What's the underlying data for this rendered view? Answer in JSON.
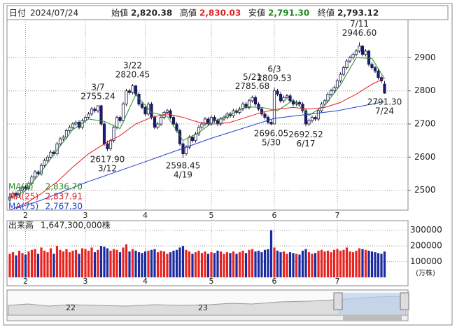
{
  "chart_data": {
    "type": "candlestick",
    "header": {
      "date_label": "日付",
      "date": "2024/07/24",
      "open_label": "始値",
      "open": "2,820.38",
      "high_label": "高値",
      "high": "2,830.03",
      "low_label": "安値",
      "low": "2,791.30",
      "close_label": "終値",
      "close": "2,793.12"
    },
    "ylim": [
      2440,
      3015
    ],
    "yticks": [
      2500,
      2600,
      2700,
      2800,
      2900
    ],
    "xticks": [
      {
        "value": 5,
        "label": "2"
      },
      {
        "value": 24,
        "label": "3"
      },
      {
        "value": 43,
        "label": "4"
      },
      {
        "value": 64,
        "label": "5"
      },
      {
        "value": 84,
        "label": "6"
      },
      {
        "value": 104,
        "label": "7"
      }
    ],
    "grid": true,
    "up_color": "#ffffff",
    "down_color": "#1a1a80",
    "volume_up_color": "#e8231f",
    "volume_down_color": "#1c2aa0",
    "ohlc": [
      [
        2470,
        2486,
        2464,
        2480
      ],
      [
        2480,
        2496,
        2474,
        2490
      ],
      [
        2490,
        2496,
        2479,
        2485
      ],
      [
        2485,
        2506,
        2479,
        2500
      ],
      [
        2500,
        2516,
        2494,
        2510
      ],
      [
        2510,
        2516,
        2499,
        2505
      ],
      [
        2505,
        2526,
        2499,
        2520
      ],
      [
        2520,
        2546,
        2514,
        2540
      ],
      [
        2540,
        2561,
        2534,
        2555
      ],
      [
        2555,
        2561,
        2544,
        2550
      ],
      [
        2550,
        2581,
        2544,
        2575
      ],
      [
        2575,
        2596,
        2569,
        2590
      ],
      [
        2590,
        2606,
        2584,
        2600
      ],
      [
        2600,
        2621,
        2594,
        2615
      ],
      [
        2615,
        2621,
        2604,
        2610
      ],
      [
        2610,
        2646,
        2604,
        2640
      ],
      [
        2640,
        2661,
        2634,
        2655
      ],
      [
        2655,
        2666,
        2649,
        2660
      ],
      [
        2660,
        2686,
        2654,
        2680
      ],
      [
        2680,
        2696,
        2674,
        2690
      ],
      [
        2690,
        2706,
        2684,
        2700
      ],
      [
        2700,
        2711,
        2694,
        2705
      ],
      [
        2705,
        2711,
        2684,
        2690
      ],
      [
        2690,
        2716,
        2684,
        2710
      ],
      [
        2710,
        2726,
        2704,
        2720
      ],
      [
        2720,
        2736,
        2714,
        2730
      ],
      [
        2730,
        2751,
        2724,
        2745
      ],
      [
        2745,
        2751,
        2734,
        2740
      ],
      [
        2740,
        2755.24,
        2734,
        2755
      ],
      [
        2755,
        2758,
        2694,
        2700
      ],
      [
        2700,
        2706,
        2634,
        2640
      ],
      [
        2640,
        2650,
        2617.9,
        2625
      ],
      [
        2625,
        2656,
        2619,
        2650
      ],
      [
        2650,
        2696,
        2644,
        2690
      ],
      [
        2690,
        2726,
        2684,
        2720
      ],
      [
        2720,
        2726,
        2704,
        2710
      ],
      [
        2710,
        2766,
        2704,
        2760
      ],
      [
        2760,
        2806,
        2754,
        2800
      ],
      [
        2800,
        2806,
        2789,
        2795
      ],
      [
        2795,
        2820.45,
        2789,
        2815
      ],
      [
        2815,
        2818,
        2784,
        2790
      ],
      [
        2790,
        2796,
        2754,
        2760
      ],
      [
        2760,
        2766,
        2744,
        2750
      ],
      [
        2750,
        2756,
        2724,
        2730
      ],
      [
        2730,
        2766,
        2724,
        2760
      ],
      [
        2760,
        2766,
        2714,
        2720
      ],
      [
        2720,
        2726,
        2684,
        2690
      ],
      [
        2690,
        2706,
        2684,
        2700
      ],
      [
        2700,
        2726,
        2694,
        2720
      ],
      [
        2720,
        2741,
        2714,
        2735
      ],
      [
        2735,
        2746,
        2729,
        2740
      ],
      [
        2740,
        2746,
        2714,
        2720
      ],
      [
        2720,
        2726,
        2694,
        2700
      ],
      [
        2700,
        2706,
        2674,
        2680
      ],
      [
        2680,
        2686,
        2634,
        2640
      ],
      [
        2640,
        2646,
        2598.45,
        2610
      ],
      [
        2610,
        2636,
        2604,
        2630
      ],
      [
        2630,
        2666,
        2624,
        2660
      ],
      [
        2660,
        2666,
        2644,
        2650
      ],
      [
        2650,
        2676,
        2644,
        2670
      ],
      [
        2670,
        2696,
        2664,
        2690
      ],
      [
        2690,
        2706,
        2684,
        2700
      ],
      [
        2700,
        2721,
        2694,
        2715
      ],
      [
        2715,
        2721,
        2694,
        2700
      ],
      [
        2700,
        2726,
        2694,
        2720
      ],
      [
        2720,
        2726,
        2704,
        2710
      ],
      [
        2710,
        2716,
        2694,
        2700
      ],
      [
        2700,
        2721,
        2694,
        2715
      ],
      [
        2715,
        2726,
        2709,
        2720
      ],
      [
        2720,
        2736,
        2714,
        2730
      ],
      [
        2730,
        2736,
        2719,
        2725
      ],
      [
        2725,
        2746,
        2719,
        2740
      ],
      [
        2740,
        2746,
        2729,
        2735
      ],
      [
        2735,
        2751,
        2729,
        2745
      ],
      [
        2745,
        2766,
        2739,
        2760
      ],
      [
        2760,
        2766,
        2744,
        2750
      ],
      [
        2750,
        2776,
        2744,
        2770
      ],
      [
        2770,
        2785.68,
        2764,
        2780
      ],
      [
        2780,
        2786,
        2754,
        2760
      ],
      [
        2760,
        2766,
        2739,
        2745
      ],
      [
        2745,
        2751,
        2724,
        2730
      ],
      [
        2730,
        2736,
        2714,
        2720
      ],
      [
        2720,
        2726,
        2699,
        2705
      ],
      [
        2705,
        2712,
        2696.05,
        2700
      ],
      [
        2700,
        2809.53,
        2700,
        2800
      ],
      [
        2800,
        2806,
        2784,
        2790
      ],
      [
        2790,
        2796,
        2764,
        2770
      ],
      [
        2770,
        2786,
        2764,
        2780
      ],
      [
        2780,
        2791,
        2774,
        2785
      ],
      [
        2785,
        2791,
        2764,
        2770
      ],
      [
        2770,
        2776,
        2754,
        2760
      ],
      [
        2760,
        2771,
        2754,
        2765
      ],
      [
        2765,
        2771,
        2754,
        2760
      ],
      [
        2760,
        2766,
        2734,
        2740
      ],
      [
        2740,
        2746,
        2692.52,
        2700
      ],
      [
        2700,
        2716,
        2694,
        2710
      ],
      [
        2710,
        2726,
        2704,
        2720
      ],
      [
        2720,
        2726,
        2709,
        2715
      ],
      [
        2715,
        2746,
        2709,
        2740
      ],
      [
        2740,
        2766,
        2734,
        2760
      ],
      [
        2760,
        2776,
        2754,
        2770
      ],
      [
        2770,
        2796,
        2764,
        2790
      ],
      [
        2790,
        2806,
        2784,
        2800
      ],
      [
        2800,
        2816,
        2794,
        2810
      ],
      [
        2810,
        2836,
        2804,
        2830
      ],
      [
        2830,
        2856,
        2824,
        2850
      ],
      [
        2850,
        2876,
        2844,
        2870
      ],
      [
        2870,
        2896,
        2864,
        2890
      ],
      [
        2890,
        2906,
        2884,
        2900
      ],
      [
        2900,
        2916,
        2894,
        2910
      ],
      [
        2910,
        2926,
        2904,
        2920
      ],
      [
        2920,
        2946.6,
        2914,
        2935
      ],
      [
        2935,
        2938,
        2904,
        2910
      ],
      [
        2910,
        2926,
        2904,
        2920
      ],
      [
        2920,
        2924,
        2874,
        2880
      ],
      [
        2880,
        2886,
        2864,
        2870
      ],
      [
        2870,
        2876,
        2854,
        2860
      ],
      [
        2860,
        2866,
        2834,
        2840
      ],
      [
        2840,
        2846,
        2824,
        2830
      ],
      [
        2820.38,
        2830.03,
        2791.3,
        2793.12
      ]
    ],
    "annotations": [
      {
        "date": "3/7",
        "value": 2755.24,
        "label": "2755.24"
      },
      {
        "date": "3/12",
        "value": 2617.9,
        "label": "2617.90"
      },
      {
        "date": "3/22",
        "value": 2820.45,
        "label": "2820.45"
      },
      {
        "date": "4/19",
        "value": 2598.45,
        "label": "2598.45"
      },
      {
        "date": "5/21",
        "value": 2785.68,
        "label": "2785.68"
      },
      {
        "date": "5/30",
        "value": 2696.05,
        "label": "2696.05"
      },
      {
        "date": "6/3",
        "value": 2809.53,
        "label": "2809.53"
      },
      {
        "date": "6/17",
        "value": 2692.52,
        "label": "2692.52"
      },
      {
        "date": "7/11",
        "value": 2946.6,
        "label": "2946.60"
      },
      {
        "date": "7/24",
        "value": 2791.3,
        "label": "2791.30"
      }
    ],
    "moving_averages": [
      {
        "name": "MA(5)",
        "value_label": "2,836.70",
        "color": "#2a8a2a",
        "x": [
          0,
          5,
          10,
          15,
          20,
          25,
          30,
          35,
          40,
          45,
          50,
          55,
          60,
          65,
          70,
          75,
          80,
          85,
          90,
          95,
          100,
          105,
          110,
          115,
          119
        ],
        "values": [
          2475,
          2498,
          2556,
          2621,
          2683,
          2715,
          2708,
          2686,
          2789,
          2735,
          2723,
          2650,
          2674,
          2709,
          2728,
          2752,
          2750,
          2740,
          2772,
          2726,
          2756,
          2818,
          2900,
          2898,
          2836.7
        ]
      },
      {
        "name": "MA(25)",
        "value_label": "2,837.91",
        "color": "#e02020",
        "x": [
          0,
          5,
          10,
          15,
          20,
          25,
          30,
          35,
          40,
          45,
          50,
          55,
          60,
          65,
          70,
          75,
          80,
          85,
          90,
          95,
          100,
          105,
          110,
          115,
          119
        ],
        "values": [
          2440,
          2460,
          2490,
          2525,
          2570,
          2610,
          2640,
          2665,
          2700,
          2720,
          2730,
          2720,
          2705,
          2700,
          2705,
          2720,
          2735,
          2745,
          2750,
          2745,
          2750,
          2765,
          2790,
          2820,
          2837.91
        ]
      },
      {
        "name": "MA(75)",
        "value_label": "2,767.30",
        "color": "#2040d0",
        "x": [
          2,
          10,
          24,
          43,
          64,
          84,
          104,
          119
        ],
        "values": [
          2445,
          2470,
          2523,
          2586,
          2657,
          2717,
          2740,
          2767.3
        ]
      }
    ],
    "volume": {
      "label": "出来高",
      "total_label": "1,647,300,000株",
      "unit": "(万株)",
      "ylim": [
        0,
        330000
      ],
      "yticks": [
        100000,
        200000,
        300000
      ],
      "values": [
        150000,
        160000,
        140000,
        170000,
        155000,
        145000,
        165000,
        175000,
        180000,
        150000,
        190000,
        170000,
        160000,
        185000,
        150000,
        200000,
        175000,
        165000,
        180000,
        160000,
        170000,
        175000,
        150000,
        185000,
        180000,
        170000,
        190000,
        160000,
        175000,
        200000,
        195000,
        185000,
        170000,
        180000,
        175000,
        160000,
        190000,
        210000,
        165000,
        180000,
        170000,
        160000,
        155000,
        165000,
        170000,
        175000,
        180000,
        160000,
        170000,
        165000,
        150000,
        160000,
        170000,
        175000,
        190000,
        200000,
        175000,
        165000,
        150000,
        160000,
        170000,
        155000,
        165000,
        150000,
        160000,
        155000,
        170000,
        165000,
        150000,
        160000,
        155000,
        165000,
        150000,
        160000,
        170000,
        155000,
        175000,
        180000,
        165000,
        170000,
        160000,
        175000,
        180000,
        300000,
        190000,
        170000,
        160000,
        165000,
        150000,
        160000,
        155000,
        150000,
        145000,
        170000,
        180000,
        160000,
        150000,
        155000,
        170000,
        175000,
        165000,
        170000,
        160000,
        175000,
        180000,
        170000,
        175000,
        190000,
        165000,
        160000,
        170000,
        185000,
        180000,
        175000,
        170000,
        165000,
        160000,
        155000,
        150000,
        164730
      ]
    },
    "navigator": {
      "labels": [
        "22",
        "23"
      ]
    }
  }
}
